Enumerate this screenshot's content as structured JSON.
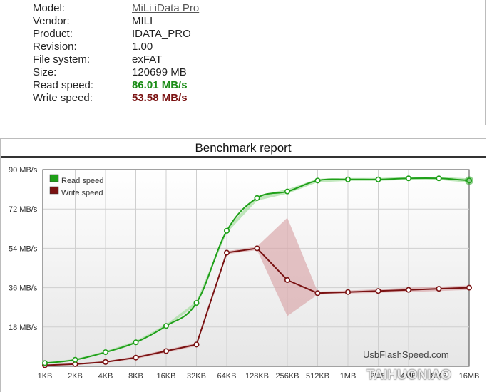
{
  "info": {
    "rows": [
      {
        "label": "Model:",
        "value": "MiLi iData Pro"
      },
      {
        "label": "Vendor:",
        "value": "MILI"
      },
      {
        "label": "Product:",
        "value": "IDATA_PRO"
      },
      {
        "label": "Revision:",
        "value": "1.00"
      },
      {
        "label": "File system:",
        "value": "exFAT"
      },
      {
        "label": "Size:",
        "value": "120699 MB"
      },
      {
        "label": "Read speed:",
        "value": "86.01 MB/s"
      },
      {
        "label": "Write speed:",
        "value": "53.58 MB/s"
      }
    ]
  },
  "benchmark": {
    "title": "Benchmark report",
    "watermark": "UsbFlashSpeed.com",
    "overlay": "TAIHUONIAO"
  },
  "colors": {
    "read": "#1fa019",
    "write": "#7a1212",
    "read_band": "#9fdc9a",
    "write_band": "#d9a4a8"
  },
  "chart_data": {
    "type": "line",
    "categories": [
      "1KB",
      "2KB",
      "4KB",
      "8KB",
      "16KB",
      "32KB",
      "64KB",
      "128KB",
      "256KB",
      "512KB",
      "1MB",
      "2MB",
      "4MB",
      "8MB",
      "16MB"
    ],
    "series": [
      {
        "name": "Read speed",
        "values": [
          1.5,
          3,
          6.5,
          11,
          18.5,
          29,
          62,
          77,
          80,
          85,
          85.5,
          85.5,
          86,
          86,
          85
        ],
        "band_low": [
          1.2,
          2.6,
          6.0,
          10.4,
          17.8,
          28.3,
          61.0,
          75.8,
          79.0,
          84.2,
          84.8,
          84.8,
          85.3,
          85.3,
          84.0
        ],
        "band_high": [
          1.8,
          3.4,
          7.0,
          11.6,
          19.2,
          29.7,
          63.0,
          78.2,
          81.0,
          85.8,
          86.2,
          86.2,
          86.7,
          86.7,
          86.0
        ]
      },
      {
        "name": "Write speed",
        "values": [
          0.5,
          1,
          2,
          4,
          7,
          10,
          52,
          54,
          39.5,
          33.5,
          34,
          34.5,
          35,
          35.5,
          36
        ],
        "band_low": [
          0.3,
          0.7,
          1.6,
          3.4,
          6.3,
          9.3,
          51.3,
          53.2,
          23,
          32.8,
          33.3,
          33.7,
          34.0,
          34.5,
          35.0
        ],
        "band_high": [
          0.7,
          1.3,
          2.4,
          4.6,
          7.7,
          10.7,
          52.7,
          54.8,
          68,
          34.2,
          34.7,
          35.3,
          36.0,
          36.5,
          37.0
        ]
      }
    ],
    "y_ticks": [
      {
        "value": 18,
        "label": "18 MB/s"
      },
      {
        "value": 36,
        "label": "36 MB/s"
      },
      {
        "value": 54,
        "label": "54 MB/s"
      },
      {
        "value": 72,
        "label": "72 MB/s"
      },
      {
        "value": 90,
        "label": "90 MB/s"
      }
    ],
    "ylim": [
      0,
      90
    ],
    "grid": true,
    "legend": "top-left"
  }
}
